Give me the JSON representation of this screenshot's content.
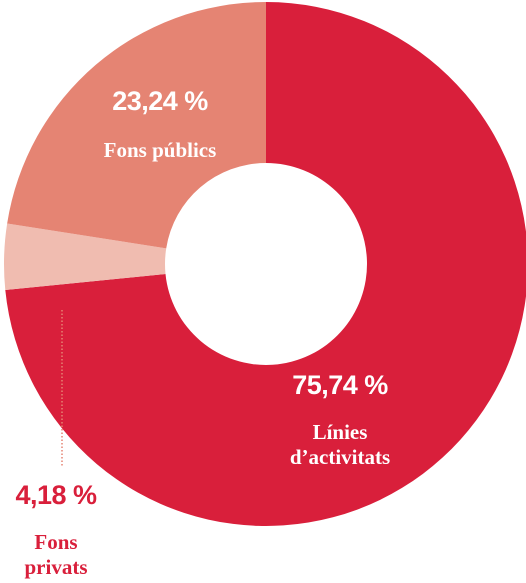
{
  "chart_data": {
    "type": "donut",
    "categories": [
      "Línies d’activitats",
      "Fons privats",
      "Fons públics"
    ],
    "values": [
      75.74,
      4.18,
      23.24
    ],
    "value_labels": [
      "75,74 %",
      "4,18 %",
      "23,24 %"
    ],
    "colors": [
      "#d91f3b",
      "#f0bcb0",
      "#e58473"
    ]
  }
}
